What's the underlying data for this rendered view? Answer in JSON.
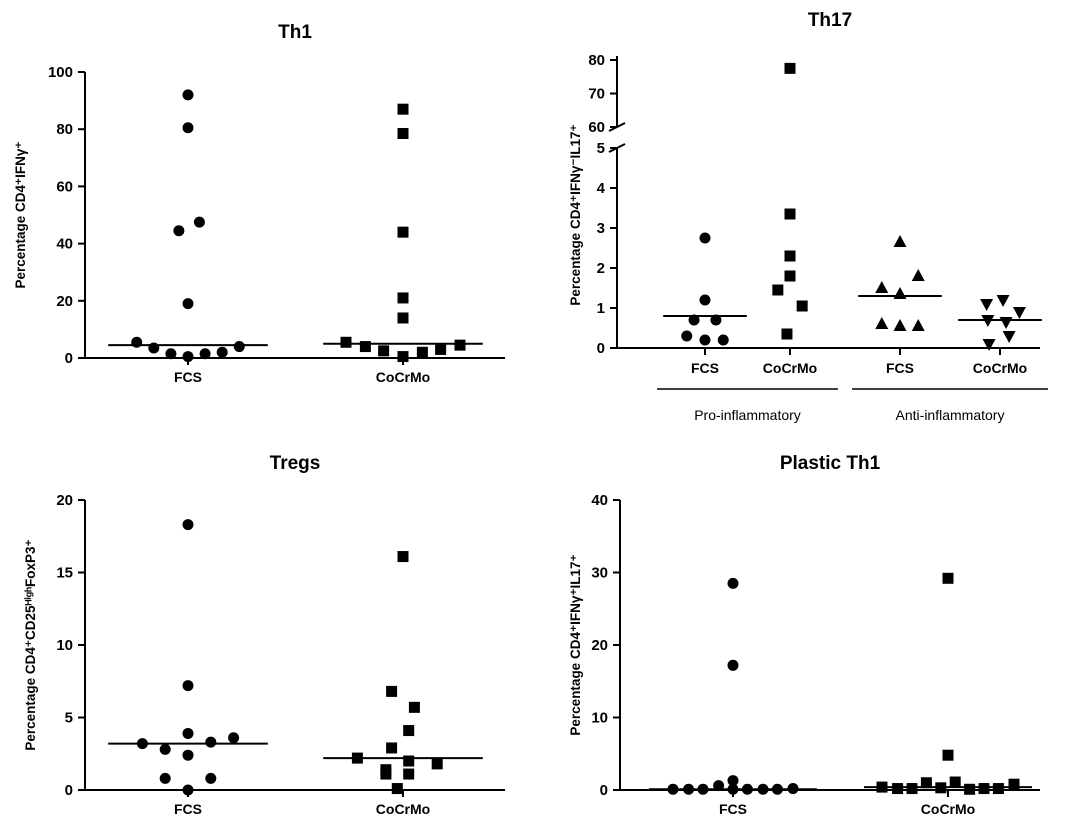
{
  "chart_data": [
    {
      "id": "th1",
      "type": "scatter",
      "title": "Th1",
      "ylabel": "Percentage CD4⁺IFNγ⁺",
      "ylim": [
        0,
        100
      ],
      "yticks": [
        0,
        20,
        40,
        60,
        80,
        100
      ],
      "categories": [
        "FCS",
        "CoCrMo"
      ],
      "series": [
        {
          "category": "FCS",
          "marker": "circle",
          "median": 4.5,
          "points": [
            {
              "x": -0.45,
              "y": 5.5
            },
            {
              "x": -0.3,
              "y": 3.5
            },
            {
              "x": -0.15,
              "y": 1.5
            },
            {
              "x": 0.0,
              "y": 0.5
            },
            {
              "x": 0.15,
              "y": 1.5
            },
            {
              "x": 0.3,
              "y": 2.0
            },
            {
              "x": 0.45,
              "y": 4.0
            },
            {
              "x": 0.0,
              "y": 19.0
            },
            {
              "x": -0.08,
              "y": 44.5
            },
            {
              "x": 0.1,
              "y": 47.5
            },
            {
              "x": 0.0,
              "y": 80.5
            },
            {
              "x": 0.0,
              "y": 92.0
            }
          ]
        },
        {
          "category": "CoCrMo",
          "marker": "square",
          "median": 5.0,
          "points": [
            {
              "x": -0.5,
              "y": 5.5
            },
            {
              "x": -0.33,
              "y": 4.0
            },
            {
              "x": -0.17,
              "y": 2.5
            },
            {
              "x": 0.0,
              "y": 0.5
            },
            {
              "x": 0.17,
              "y": 2.0
            },
            {
              "x": 0.33,
              "y": 3.0
            },
            {
              "x": 0.5,
              "y": 4.5
            },
            {
              "x": 0.0,
              "y": 14.0
            },
            {
              "x": 0.0,
              "y": 21.0
            },
            {
              "x": 0.0,
              "y": 44.0
            },
            {
              "x": 0.0,
              "y": 78.5
            },
            {
              "x": 0.0,
              "y": 87.0
            }
          ]
        }
      ]
    },
    {
      "id": "th17",
      "type": "scatter",
      "title": "Th17",
      "ylabel": "Percentage CD4⁺IFNγ⁻IL17⁺",
      "broken_axis": {
        "lower": [
          0,
          5
        ],
        "upper": [
          60,
          80
        ]
      },
      "yticks_lower": [
        0,
        1,
        2,
        3,
        4,
        5
      ],
      "yticks_upper": [
        60,
        70,
        80
      ],
      "categories": [
        "FCS",
        "CoCrMo",
        "FCS",
        "CoCrMo"
      ],
      "groups": [
        {
          "label": "Pro-inflammatory",
          "span": [
            0,
            1
          ]
        },
        {
          "label": "Anti-inflammatory",
          "span": [
            2,
            3
          ]
        }
      ],
      "series": [
        {
          "category_index": 0,
          "marker": "circle",
          "median": 0.8,
          "points": [
            {
              "x": -0.3,
              "y": 0.3
            },
            {
              "x": 0.0,
              "y": 0.2
            },
            {
              "x": 0.3,
              "y": 0.2
            },
            {
              "x": -0.18,
              "y": 0.7
            },
            {
              "x": 0.18,
              "y": 0.7
            },
            {
              "x": 0.0,
              "y": 1.2
            },
            {
              "x": 0.0,
              "y": 2.75
            }
          ]
        },
        {
          "category_index": 1,
          "marker": "square",
          "median": null,
          "points": [
            {
              "x": -0.05,
              "y": 0.35
            },
            {
              "x": 0.2,
              "y": 1.05
            },
            {
              "x": -0.2,
              "y": 1.45
            },
            {
              "x": 0.0,
              "y": 1.8
            },
            {
              "x": 0.0,
              "y": 2.3
            },
            {
              "x": 0.0,
              "y": 3.35
            },
            {
              "x": 0.0,
              "y": 77.5
            }
          ]
        },
        {
          "category_index": 2,
          "marker": "triangle-up",
          "median": 1.3,
          "points": [
            {
              "x": -0.3,
              "y": 0.6
            },
            {
              "x": 0.0,
              "y": 0.55
            },
            {
              "x": 0.3,
              "y": 0.55
            },
            {
              "x": -0.3,
              "y": 1.5
            },
            {
              "x": 0.0,
              "y": 1.35
            },
            {
              "x": 0.3,
              "y": 1.8
            },
            {
              "x": 0.0,
              "y": 2.65
            }
          ]
        },
        {
          "category_index": 3,
          "marker": "triangle-down",
          "median": 0.7,
          "points": [
            {
              "x": -0.22,
              "y": 1.1
            },
            {
              "x": 0.05,
              "y": 1.2
            },
            {
              "x": 0.32,
              "y": 0.9
            },
            {
              "x": -0.2,
              "y": 0.7
            },
            {
              "x": 0.1,
              "y": 0.65
            },
            {
              "x": -0.18,
              "y": 0.1
            },
            {
              "x": 0.15,
              "y": 0.3
            }
          ]
        }
      ]
    },
    {
      "id": "tregs",
      "type": "scatter",
      "title": "Tregs",
      "ylabel": "Percentage CD4⁺CD25ᴴⁱᵍʰFoxP3⁺",
      "ylim": [
        0,
        20
      ],
      "yticks": [
        0,
        5,
        10,
        15,
        20
      ],
      "categories": [
        "FCS",
        "CoCrMo"
      ],
      "series": [
        {
          "category": "FCS",
          "marker": "circle",
          "median": 3.2,
          "points": [
            {
              "x": -0.4,
              "y": 3.2
            },
            {
              "x": -0.2,
              "y": 2.8
            },
            {
              "x": 0.0,
              "y": 2.4
            },
            {
              "x": 0.2,
              "y": 3.3
            },
            {
              "x": 0.4,
              "y": 3.6
            },
            {
              "x": 0.0,
              "y": 3.9
            },
            {
              "x": -0.2,
              "y": 0.8
            },
            {
              "x": 0.2,
              "y": 0.8
            },
            {
              "x": 0.0,
              "y": 0.0
            },
            {
              "x": 0.0,
              "y": 7.2
            },
            {
              "x": 0.0,
              "y": 18.3
            }
          ]
        },
        {
          "category": "CoCrMo",
          "marker": "square",
          "median": 2.2,
          "points": [
            {
              "x": -0.4,
              "y": 2.2
            },
            {
              "x": -0.15,
              "y": 1.4
            },
            {
              "x": 0.05,
              "y": 2.0
            },
            {
              "x": 0.3,
              "y": 1.8
            },
            {
              "x": -0.15,
              "y": 1.1
            },
            {
              "x": 0.05,
              "y": 1.1
            },
            {
              "x": -0.05,
              "y": 0.1
            },
            {
              "x": -0.1,
              "y": 2.9
            },
            {
              "x": 0.05,
              "y": 4.1
            },
            {
              "x": 0.1,
              "y": 5.7
            },
            {
              "x": -0.1,
              "y": 6.8
            },
            {
              "x": 0.0,
              "y": 16.1
            }
          ]
        }
      ]
    },
    {
      "id": "plastic-th1",
      "type": "scatter",
      "title": "Plastic Th1",
      "ylabel": "Percentage CD4⁺IFNγ⁺IL17⁺",
      "ylim": [
        0,
        40
      ],
      "yticks": [
        0,
        10,
        20,
        30,
        40
      ],
      "categories": [
        "FCS",
        "CoCrMo"
      ],
      "series": [
        {
          "category": "FCS",
          "marker": "circle",
          "median": 0.1,
          "points": [
            {
              "x": -0.5,
              "y": 0.1
            },
            {
              "x": -0.37,
              "y": 0.1
            },
            {
              "x": -0.25,
              "y": 0.1
            },
            {
              "x": -0.12,
              "y": 0.6
            },
            {
              "x": 0.0,
              "y": 0.1
            },
            {
              "x": 0.12,
              "y": 0.1
            },
            {
              "x": 0.25,
              "y": 0.1
            },
            {
              "x": 0.37,
              "y": 0.1
            },
            {
              "x": 0.5,
              "y": 0.2
            },
            {
              "x": 0.0,
              "y": 1.3
            },
            {
              "x": 0.0,
              "y": 17.2
            },
            {
              "x": 0.0,
              "y": 28.5
            }
          ]
        },
        {
          "category": "CoCrMo",
          "marker": "square",
          "median": 0.4,
          "points": [
            {
              "x": -0.55,
              "y": 0.4
            },
            {
              "x": -0.42,
              "y": 0.2
            },
            {
              "x": -0.3,
              "y": 0.2
            },
            {
              "x": -0.18,
              "y": 1.0
            },
            {
              "x": -0.06,
              "y": 0.3
            },
            {
              "x": 0.06,
              "y": 1.1
            },
            {
              "x": 0.18,
              "y": 0.1
            },
            {
              "x": 0.3,
              "y": 0.2
            },
            {
              "x": 0.42,
              "y": 0.2
            },
            {
              "x": 0.55,
              "y": 0.8
            },
            {
              "x": 0.0,
              "y": 4.8
            },
            {
              "x": 0.0,
              "y": 29.2
            }
          ]
        }
      ]
    }
  ]
}
